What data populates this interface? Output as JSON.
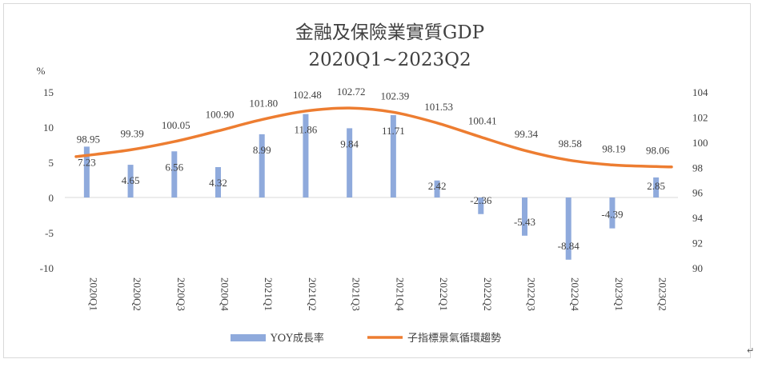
{
  "chart_data": {
    "type": "bar+line",
    "title": "金融及保險業實質GDP",
    "subtitle": "2020Q1~2023Q2",
    "ylabel_left": "%",
    "categories": [
      "2020Q1",
      "2020Q2",
      "2020Q3",
      "2020Q4",
      "2021Q1",
      "2021Q2",
      "2021Q3",
      "2021Q4",
      "2022Q1",
      "2022Q2",
      "2022Q3",
      "2022Q4",
      "2023Q1",
      "2023Q2"
    ],
    "series": [
      {
        "name": "YOY成長率",
        "kind": "bar",
        "axis": "left",
        "color": "#8faadc",
        "values": [
          7.23,
          4.65,
          6.56,
          4.32,
          8.99,
          11.86,
          9.84,
          11.71,
          2.42,
          -2.36,
          -5.43,
          -8.84,
          -4.39,
          2.85
        ],
        "labels": [
          "7.23",
          "4.65",
          "6.56",
          "4.32",
          "8.99",
          "11.86",
          "9.84",
          "11.71",
          "2.42",
          "-2.36",
          "-5.43",
          "-8.84",
          "-4.39",
          "2.85"
        ]
      },
      {
        "name": "子指標景氣循環趨勢",
        "kind": "line",
        "axis": "right",
        "color": "#ed7d31",
        "values": [
          98.95,
          99.39,
          100.05,
          100.9,
          101.8,
          102.48,
          102.72,
          102.39,
          101.53,
          100.41,
          99.34,
          98.58,
          98.19,
          98.06
        ],
        "labels": [
          "98.95",
          "99.39",
          "100.05",
          "100.90",
          "101.80",
          "102.48",
          "102.72",
          "102.39",
          "101.53",
          "100.41",
          "99.34",
          "98.58",
          "98.19",
          "98.06"
        ]
      }
    ],
    "ylim_left": [
      -10,
      15
    ],
    "yticks_left": [
      "15",
      "10",
      "5",
      "0",
      "-5",
      "-10"
    ],
    "ylim_right": [
      90,
      104
    ],
    "yticks_right": [
      "104",
      "102",
      "100",
      "98",
      "96",
      "94",
      "92",
      "90"
    ],
    "grid": false,
    "legend": "bottom-center"
  },
  "end_mark": "↵"
}
